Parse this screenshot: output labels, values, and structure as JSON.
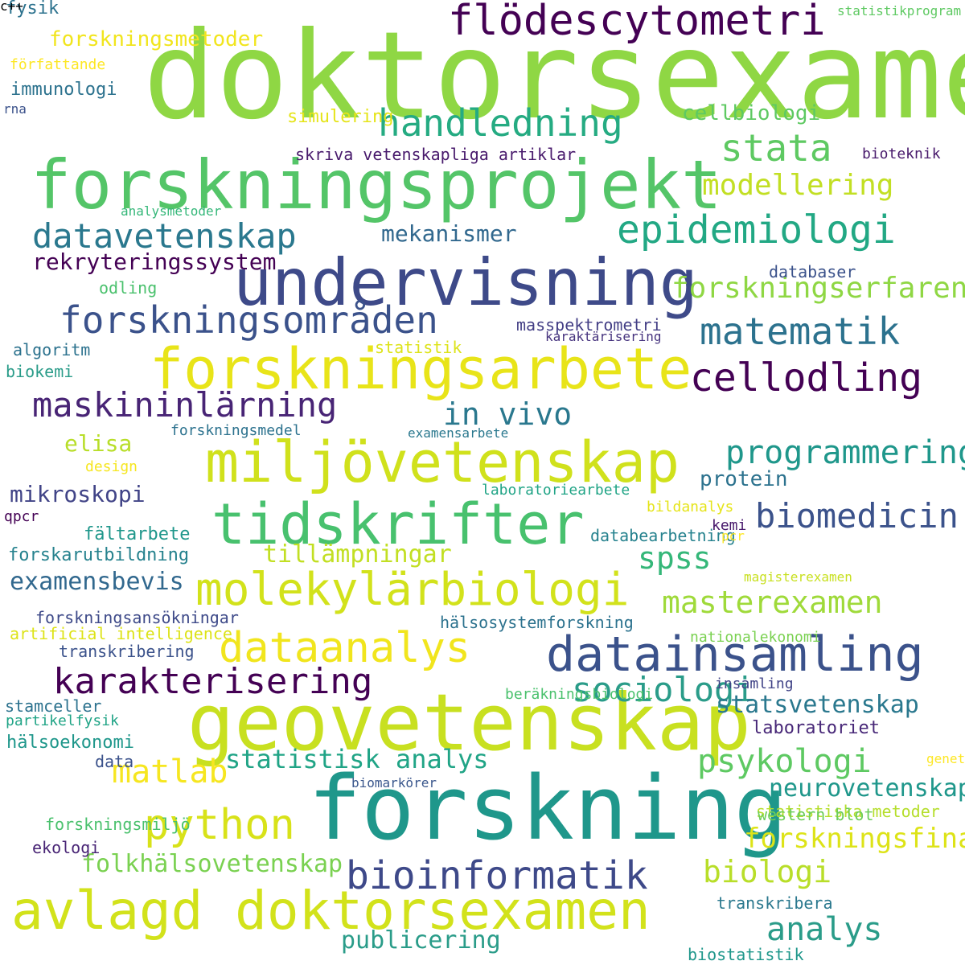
{
  "words": [
    {
      "text": "doktorsexamen",
      "color": "#8fd744"
    },
    {
      "text": "forskningsprojekt",
      "color": "#54c568"
    },
    {
      "text": "forskning",
      "color": "#1f978b"
    },
    {
      "text": "geovetenskap",
      "color": "#c8e020"
    },
    {
      "text": "undervisning",
      "color": "#3e4a89"
    },
    {
      "text": "miljövetenskap",
      "color": "#d0e11c"
    },
    {
      "text": "tidskrifter",
      "color": "#48c16e"
    },
    {
      "text": "forskningsarbete",
      "color": "#e8e419"
    },
    {
      "text": "avlagd doktorsexamen",
      "color": "#d2e21b"
    },
    {
      "text": "molekylärbiologi",
      "color": "#d2e21b"
    },
    {
      "text": "datainsamling",
      "color": "#3b528b"
    },
    {
      "text": "flödescytometri",
      "color": "#440154"
    },
    {
      "text": "handledning",
      "color": "#25ab82"
    },
    {
      "text": "epidemiologi",
      "color": "#22a884"
    },
    {
      "text": "bioinformatik",
      "color": "#3e4989"
    },
    {
      "text": "dataanalys",
      "color": "#f1e51d"
    },
    {
      "text": "karakterisering",
      "color": "#440154"
    },
    {
      "text": "forskningsområden",
      "color": "#3b528b"
    },
    {
      "text": "python",
      "color": "#d8e219"
    },
    {
      "text": "cellodling",
      "color": "#440154"
    },
    {
      "text": "matematik",
      "color": "#2c728e"
    },
    {
      "text": "maskininlärning",
      "color": "#482475"
    },
    {
      "text": "stata",
      "color": "#5ec962"
    },
    {
      "text": "datavetenskap",
      "color": "#2a788e"
    },
    {
      "text": "psykologi",
      "color": "#5ec962"
    },
    {
      "text": "biomedicin",
      "color": "#3b528b"
    },
    {
      "text": "analys",
      "color": "#2a9c89"
    },
    {
      "text": "biologi",
      "color": "#b8de29"
    },
    {
      "text": "sociologi",
      "color": "#2a9c89"
    },
    {
      "text": "matlab",
      "color": "#f6e620"
    },
    {
      "text": "spss",
      "color": "#35b779"
    },
    {
      "text": "programmering",
      "color": "#1f978b"
    },
    {
      "text": "in vivo",
      "color": "#2a788e"
    },
    {
      "text": "forskningserfarenhet",
      "color": "#8fd744"
    },
    {
      "text": "masterexamen",
      "color": "#9fda3a"
    },
    {
      "text": "modellering",
      "color": "#c2df23"
    },
    {
      "text": "publicering",
      "color": "#2a9c89"
    },
    {
      "text": "statistisk analys",
      "color": "#20a486"
    },
    {
      "text": "forskningsfinansiering",
      "color": "#dde318"
    },
    {
      "text": "tillämpningar",
      "color": "#c2df23"
    },
    {
      "text": "folkhälsovetenskap",
      "color": "#7ad151"
    },
    {
      "text": "statsvetenskap",
      "color": "#2a788e"
    },
    {
      "text": "neurovetenskap",
      "color": "#1f978b"
    },
    {
      "text": "mekanismer",
      "color": "#31688e"
    },
    {
      "text": "cellbiologi",
      "color": "#5ec962"
    },
    {
      "text": "rekryteringssystem",
      "color": "#440154"
    },
    {
      "text": "mikroskopi",
      "color": "#414487"
    },
    {
      "text": "examensbevis",
      "color": "#31688e"
    },
    {
      "text": "protein",
      "color": "#2c728e"
    },
    {
      "text": "forskningsmetoder",
      "color": "#f1e51d"
    },
    {
      "text": "elisa",
      "color": "#b8de29"
    },
    {
      "text": "fysik",
      "color": "#2c728e"
    },
    {
      "text": "skriva vetenskapliga artiklar",
      "color": "#481a6c"
    },
    {
      "text": "forskningsansökningar",
      "color": "#3e4a89"
    },
    {
      "text": "artificial intelligence",
      "color": "#dde318"
    },
    {
      "text": "forskarutbildning",
      "color": "#26828e"
    },
    {
      "text": "hälsosystemforskning",
      "color": "#2c728e"
    },
    {
      "text": "transkribera",
      "color": "#2a788e"
    },
    {
      "text": "biostatistik",
      "color": "#1f978b"
    },
    {
      "text": "statistiska metoder",
      "color": "#b5de2b"
    },
    {
      "text": "laboratoriet",
      "color": "#482878"
    },
    {
      "text": "western blot",
      "color": "#6ccd5a"
    },
    {
      "text": "masspektrometri",
      "color": "#433e85"
    },
    {
      "text": "databearbetning",
      "color": "#26828e"
    },
    {
      "text": "stamceller",
      "color": "#2c728e"
    },
    {
      "text": "hälsoekonomi",
      "color": "#1f978b"
    },
    {
      "text": "transkribering",
      "color": "#3b528b"
    },
    {
      "text": "immunologi",
      "color": "#2c728e"
    },
    {
      "text": "insamling",
      "color": "#414487"
    },
    {
      "text": "nationalekonomi",
      "color": "#7ad151"
    },
    {
      "text": "databaser",
      "color": "#3b528b"
    },
    {
      "text": "forskningsmiljö",
      "color": "#4ac16d"
    },
    {
      "text": "algoritm",
      "color": "#2c728e"
    },
    {
      "text": "biokemi",
      "color": "#2a9c89"
    },
    {
      "text": "statistik",
      "color": "#dde318"
    },
    {
      "text": "bildanalys",
      "color": "#e5e419"
    },
    {
      "text": "ekologi",
      "color": "#482475"
    },
    {
      "text": "data",
      "color": "#3b528b"
    },
    {
      "text": "odling",
      "color": "#4ac16d"
    },
    {
      "text": "simulering",
      "color": "#e5e419"
    },
    {
      "text": "design",
      "color": "#f6e620"
    },
    {
      "text": "fältarbete",
      "color": "#1f978b"
    },
    {
      "text": "författande",
      "color": "#fde725"
    },
    {
      "text": "partikelfysik",
      "color": "#20a486"
    },
    {
      "text": "beräkningsbiologi",
      "color": "#4ac16d"
    },
    {
      "text": "kemi",
      "color": "#481a6c"
    },
    {
      "text": "pcr",
      "color": "#fde725"
    },
    {
      "text": "magisterexamen",
      "color": "#c8e020"
    },
    {
      "text": "statistikprogram",
      "color": "#5ec962"
    },
    {
      "text": "analysmetoder",
      "color": "#35b779"
    },
    {
      "text": "examensarbete",
      "color": "#2a788e"
    },
    {
      "text": "laboratoriearbete",
      "color": "#20a486"
    },
    {
      "text": "karaktärisering",
      "color": "#46337e"
    },
    {
      "text": "biomarkörer",
      "color": "#39568c"
    },
    {
      "text": "forskningsmedel",
      "color": "#2c728e"
    },
    {
      "text": "qpcr",
      "color": "#440154"
    },
    {
      "text": "bioteknik",
      "color": "#481a6c"
    },
    {
      "text": "genetik",
      "color": "#fde725"
    },
    {
      "text": "rna",
      "color": "#3b528b"
    },
    {
      "text": "c++",
      "color": "#3b528b"
    }
  ]
}
